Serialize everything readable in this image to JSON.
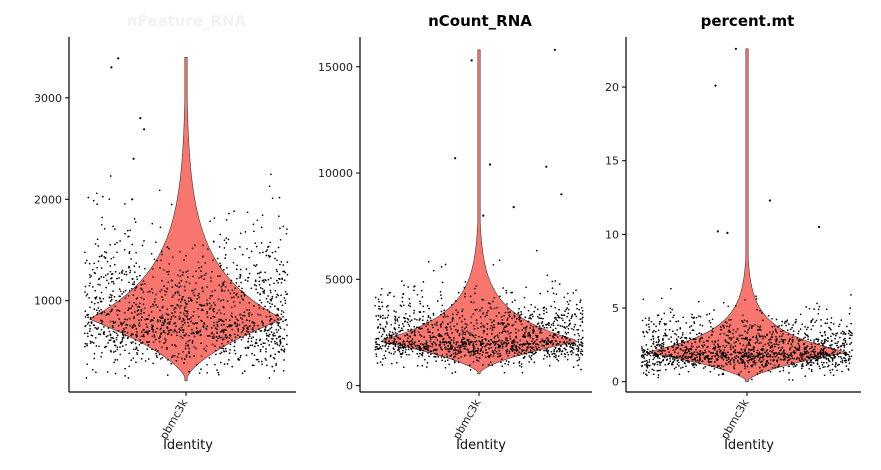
{
  "chart_data": [
    {
      "type": "violin",
      "title": "nFeature_RNA",
      "title_style": "faded",
      "categories": [
        "pbmc3k"
      ],
      "xlabel": "Identity",
      "ylabel": "",
      "ylim": [
        100,
        3600
      ],
      "yticks": [
        1000,
        2000,
        3000
      ],
      "fill_color": "#f8766d",
      "distribution": {
        "min": 210,
        "max": 3400,
        "mode": 820,
        "median": 830,
        "q1": 640,
        "q3": 1090,
        "n_points": 2700,
        "outliers": [
          3300,
          3390,
          2800,
          2690,
          2400,
          2000
        ]
      }
    },
    {
      "type": "violin",
      "title": "nCount_RNA",
      "title_style": "normal",
      "categories": [
        "pbmc3k"
      ],
      "xlabel": "Identity",
      "ylabel": "",
      "ylim": [
        -300,
        16400
      ],
      "yticks": [
        0,
        5000,
        10000,
        15000
      ],
      "fill_color": "#f8766d",
      "distribution": {
        "min": 550,
        "max": 15800,
        "mode": 2100,
        "median": 2200,
        "q1": 1700,
        "q3": 2800,
        "n_points": 2700,
        "outliers": [
          15800,
          15300,
          10700,
          10400,
          10300,
          9000,
          8400,
          8000
        ]
      }
    },
    {
      "type": "violin",
      "title": "percent.mt",
      "title_style": "normal",
      "categories": [
        "pbmc3k"
      ],
      "xlabel": "Identity",
      "ylabel": "",
      "ylim": [
        -0.7,
        23.4
      ],
      "yticks": [
        0,
        5,
        10,
        15,
        20
      ],
      "fill_color": "#f8766d",
      "distribution": {
        "min": 0,
        "max": 22.6,
        "mode": 2.0,
        "median": 2.1,
        "q1": 1.5,
        "q3": 2.8,
        "n_points": 2700,
        "outliers": [
          22.6,
          20.1,
          12.3,
          10.5,
          10.2,
          10.1
        ]
      }
    }
  ]
}
